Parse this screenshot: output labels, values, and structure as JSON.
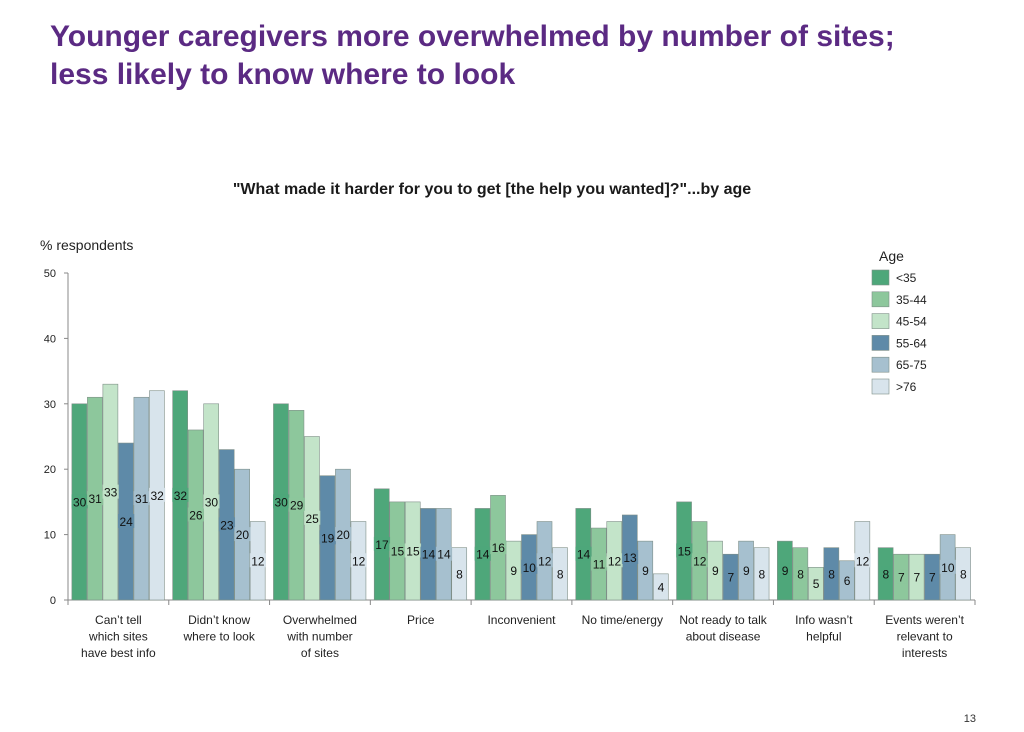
{
  "slide": {
    "title_line1": "Younger caregivers more overwhelmed by number of sites;",
    "title_line2": "less likely to know where to look",
    "page_number": "13"
  },
  "colors": {
    "title": "#5b2a83",
    "series": [
      "#4ea77a",
      "#8dc79c",
      "#c3e4c9",
      "#5e8aa8",
      "#a6c0cf",
      "#d8e4ec"
    ]
  },
  "chart_data": {
    "type": "bar",
    "title": "\"What made it harder for you to get [the help you wanted]?\"...by age",
    "ylabel": "% respondents",
    "ylim": [
      0,
      50
    ],
    "yticks": [
      0,
      10,
      20,
      30,
      40,
      50
    ],
    "legend_title": "Age",
    "legend_position": "right",
    "categories": [
      [
        "Can’t tell",
        "which sites",
        "have best info"
      ],
      [
        "Didn’t know",
        "where to look"
      ],
      [
        "Overwhelmed",
        "with number",
        "of sites"
      ],
      [
        "Price"
      ],
      [
        "Inconvenient"
      ],
      [
        "No time/energy"
      ],
      [
        "Not ready to talk",
        "about disease"
      ],
      [
        "Info wasn’t",
        "helpful"
      ],
      [
        "Events weren’t",
        "relevant to",
        "interests"
      ]
    ],
    "series": [
      {
        "name": "<35",
        "values": [
          30,
          32,
          30,
          17,
          14,
          14,
          15,
          9,
          8
        ]
      },
      {
        "name": "35-44",
        "values": [
          31,
          26,
          29,
          15,
          16,
          11,
          12,
          8,
          7
        ]
      },
      {
        "name": "45-54",
        "values": [
          33,
          30,
          25,
          15,
          9,
          12,
          9,
          5,
          7
        ]
      },
      {
        "name": "55-64",
        "values": [
          24,
          23,
          19,
          14,
          10,
          13,
          7,
          8,
          7
        ]
      },
      {
        "name": "65-75",
        "values": [
          31,
          20,
          20,
          14,
          12,
          9,
          9,
          6,
          10
        ]
      },
      {
        "name": ">76",
        "values": [
          32,
          12,
          12,
          8,
          8,
          4,
          8,
          12,
          8
        ]
      }
    ]
  }
}
